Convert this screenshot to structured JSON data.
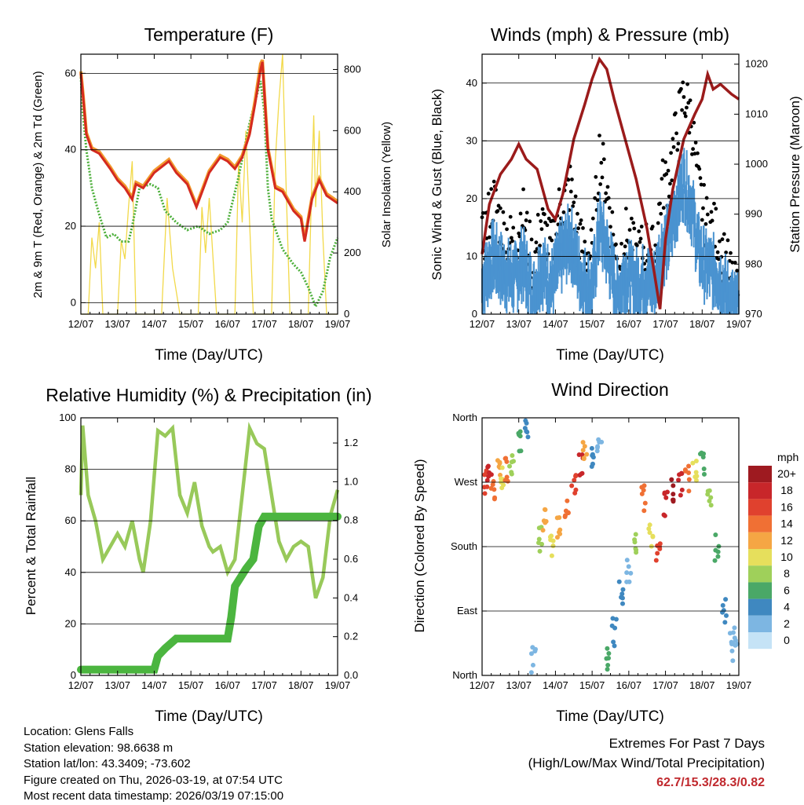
{
  "colors": {
    "t2m": "#d42a1f",
    "t9m": "#f29a2e",
    "td": "#4caf3a",
    "solar": "#f2d94a",
    "gust": "#000000",
    "wind": "#4a93d0",
    "pressure": "#9b1b1b",
    "rh": "#98c95a",
    "precip": "#4bb53f"
  },
  "chart_data": [
    {
      "id": "temperature",
      "type": "line",
      "title": "Temperature (F)",
      "xlabel": "Time (Day/UTC)",
      "ylabel": "2m & 9m T (Red, Orange) & 2m Td (Green)",
      "y2label": "Solar Insolation (Yellow)",
      "xticks": [
        "12/07",
        "13/07",
        "14/07",
        "15/07",
        "16/07",
        "17/07",
        "18/07",
        "19/07"
      ],
      "xlim": [
        0,
        7
      ],
      "ylim": [
        -3,
        65
      ],
      "yticks": [
        "0",
        "20",
        "40",
        "60"
      ],
      "y2lim": [
        0,
        850
      ],
      "y2ticks": [
        "0",
        "200",
        "400",
        "600",
        "800"
      ],
      "series": [
        {
          "name": "2m T",
          "x": [
            0,
            0.06,
            0.15,
            0.3,
            0.5,
            0.8,
            1.0,
            1.2,
            1.4,
            1.5,
            1.7,
            2.0,
            2.4,
            2.6,
            2.9,
            3.15,
            3.5,
            3.8,
            4.0,
            4.2,
            4.4,
            4.6,
            4.75,
            4.9,
            4.95,
            5.1,
            5.3,
            5.5,
            5.8,
            6.0,
            6.1,
            6.3,
            6.5,
            6.7,
            7.0
          ],
          "values": [
            60,
            54,
            44,
            40,
            39,
            35,
            32,
            30,
            27,
            31,
            30,
            34,
            37,
            34,
            31,
            25,
            34,
            38,
            37,
            35,
            38,
            44,
            52,
            61,
            63,
            40,
            30,
            29,
            24,
            22,
            16,
            27,
            32,
            28,
            26
          ]
        },
        {
          "name": "9m T",
          "x": [
            0,
            0.06,
            0.15,
            0.3,
            0.5,
            0.8,
            1.0,
            1.2,
            1.4,
            1.5,
            1.7,
            2.0,
            2.4,
            2.6,
            2.9,
            3.15,
            3.5,
            3.8,
            4.0,
            4.2,
            4.4,
            4.6,
            4.75,
            4.9,
            4.95,
            5.1,
            5.3,
            5.5,
            5.8,
            6.0,
            6.1,
            6.3,
            6.5,
            6.7,
            7.0
          ],
          "values": [
            60.5,
            54.5,
            44.5,
            40.5,
            39.5,
            35.5,
            32.5,
            30.5,
            27.5,
            31.5,
            30.5,
            34.5,
            37.5,
            34.5,
            31.5,
            25.5,
            34.5,
            38.5,
            37.5,
            35.5,
            38.5,
            44.5,
            53,
            62.5,
            63.5,
            40.5,
            30.5,
            29.5,
            24.5,
            22.5,
            16.5,
            27.5,
            32.5,
            28.5,
            26.5
          ]
        },
        {
          "name": "2m Td",
          "x": [
            0,
            0.05,
            0.15,
            0.3,
            0.5,
            0.7,
            0.9,
            1.1,
            1.3,
            1.4,
            1.6,
            1.9,
            2.1,
            2.3,
            2.6,
            2.9,
            3.2,
            3.5,
            3.8,
            4.0,
            4.3,
            4.6,
            4.9,
            5.0,
            5.1,
            5.2,
            5.5,
            5.8,
            6.0,
            6.2,
            6.4,
            6.6,
            6.8,
            7.0
          ],
          "values": [
            59,
            50,
            40,
            30,
            23,
            17,
            18,
            16,
            16,
            20,
            30,
            31,
            30,
            24,
            21,
            19,
            20,
            18,
            19,
            21,
            33,
            47,
            58,
            50,
            30,
            22,
            14,
            10,
            8,
            4,
            -1,
            3,
            12,
            17
          ]
        },
        {
          "name": "Solar Insolation",
          "axis": "y2",
          "x": [
            0,
            0.2,
            0.3,
            0.4,
            0.5,
            0.6,
            0.8,
            1.0,
            1.1,
            1.2,
            1.3,
            1.4,
            1.5,
            1.7,
            2.0,
            2.2,
            2.35,
            2.5,
            2.7,
            3.0,
            3.2,
            3.3,
            3.4,
            3.5,
            3.7,
            4.0,
            4.2,
            4.3,
            4.4,
            4.5,
            4.7,
            5.0,
            5.2,
            5.3,
            5.4,
            5.5,
            5.6,
            5.7,
            6.0,
            6.2,
            6.3,
            6.35,
            6.4,
            6.5,
            6.6,
            6.7,
            7.0
          ],
          "values": [
            0,
            0,
            250,
            150,
            300,
            0,
            0,
            0,
            240,
            180,
            350,
            500,
            0,
            0,
            0,
            0,
            380,
            150,
            0,
            0,
            0,
            350,
            200,
            380,
            0,
            0,
            0,
            500,
            300,
            600,
            0,
            0,
            0,
            500,
            700,
            850,
            400,
            0,
            0,
            0,
            450,
            650,
            350,
            600,
            250,
            0,
            0
          ]
        }
      ]
    },
    {
      "id": "winds",
      "type": "scatter",
      "title": "Winds (mph) & Pressure (mb)",
      "xlabel": "Time (Day/UTC)",
      "ylabel": "Sonic Wind & Gust (Blue, Black)",
      "y2label": "Station Pressure (Maroon)",
      "xticks": [
        "12/07",
        "13/07",
        "14/07",
        "15/07",
        "16/07",
        "17/07",
        "18/07",
        "19/07"
      ],
      "xlim": [
        0,
        7
      ],
      "ylim": [
        0,
        45
      ],
      "yticks": [
        "0",
        "10",
        "20",
        "30",
        "40"
      ],
      "y2lim": [
        970,
        1022
      ],
      "y2ticks": [
        "970",
        "980",
        "990",
        "1000",
        "1010",
        "1020"
      ],
      "series": [
        {
          "name": "Gust",
          "x": [
            0,
            0.3,
            0.6,
            0.9,
            1.1,
            1.4,
            1.6,
            1.9,
            2.1,
            2.4,
            2.7,
            3.0,
            3.2,
            3.4,
            3.7,
            3.9,
            4.2,
            4.5,
            4.7,
            4.9,
            5.1,
            5.3,
            5.5,
            5.7,
            5.9,
            6.1,
            6.4,
            6.7,
            7.0
          ],
          "values": [
            12,
            20,
            14,
            12,
            18,
            8,
            16,
            11,
            18,
            22,
            12,
            10,
            28,
            22,
            8,
            14,
            10,
            12,
            10,
            22,
            24,
            32,
            38,
            34,
            22,
            16,
            14,
            8,
            2
          ]
        },
        {
          "name": "Sonic Wind",
          "x": [
            0,
            0.3,
            0.6,
            0.9,
            1.1,
            1.4,
            1.6,
            1.9,
            2.1,
            2.4,
            2.7,
            3.0,
            3.2,
            3.4,
            3.7,
            3.9,
            4.2,
            4.5,
            4.7,
            4.9,
            5.1,
            5.3,
            5.5,
            5.7,
            5.9,
            6.1,
            6.4,
            6.7,
            7.0
          ],
          "values": [
            6,
            11,
            8,
            7,
            10,
            4,
            9,
            6,
            10,
            14,
            7,
            5,
            16,
            12,
            4,
            8,
            6,
            7,
            6,
            12,
            14,
            20,
            24,
            20,
            12,
            9,
            8,
            4,
            1
          ]
        },
        {
          "name": "Station Pressure",
          "axis": "y2",
          "x": [
            0,
            0.2,
            0.5,
            0.8,
            1.0,
            1.2,
            1.5,
            1.8,
            2.0,
            2.2,
            2.5,
            2.8,
            3.0,
            3.2,
            3.4,
            3.6,
            3.9,
            4.2,
            4.5,
            4.7,
            4.85,
            5.0,
            5.2,
            5.5,
            5.8,
            6.0,
            6.15,
            6.3,
            6.5,
            6.8,
            7.0
          ],
          "values": [
            982,
            992,
            998,
            1001,
            1004,
            1001,
            999,
            991,
            989,
            994,
            1005,
            1012,
            1017,
            1021,
            1019,
            1013,
            1005,
            997,
            987,
            978,
            971,
            985,
            995,
            1005,
            1010,
            1013,
            1018,
            1015,
            1016,
            1014,
            1013
          ]
        }
      ]
    },
    {
      "id": "humidity",
      "type": "line",
      "title": "Relative Humidity (%) & Precipitation (in)",
      "xlabel": "Time (Day/UTC)",
      "ylabel": "Percent & Total Rainfall",
      "xticks": [
        "12/07",
        "13/07",
        "14/07",
        "15/07",
        "16/07",
        "17/07",
        "18/07",
        "19/07"
      ],
      "xlim": [
        0,
        7
      ],
      "ylim": [
        0,
        100
      ],
      "yticks": [
        "0",
        "20",
        "40",
        "60",
        "80",
        "100"
      ],
      "y2lim": [
        0,
        1.33
      ],
      "y2ticks": [
        "0.0",
        "0.2",
        "0.4",
        "0.6",
        "0.8",
        "1.0",
        "1.2"
      ],
      "series": [
        {
          "name": "Relative Humidity",
          "x": [
            0,
            0.05,
            0.2,
            0.4,
            0.6,
            0.8,
            1.0,
            1.2,
            1.4,
            1.6,
            1.7,
            1.9,
            2.1,
            2.3,
            2.5,
            2.7,
            2.9,
            3.1,
            3.3,
            3.5,
            3.6,
            3.8,
            4.0,
            4.2,
            4.4,
            4.6,
            4.8,
            5.0,
            5.2,
            5.4,
            5.6,
            5.8,
            6.0,
            6.2,
            6.4,
            6.6,
            6.8,
            7.0
          ],
          "values": [
            70,
            97,
            70,
            60,
            45,
            50,
            55,
            50,
            60,
            45,
            40,
            60,
            95,
            93,
            96,
            70,
            63,
            75,
            58,
            50,
            48,
            50,
            40,
            45,
            70,
            96,
            90,
            88,
            70,
            52,
            45,
            50,
            52,
            50,
            30,
            38,
            62,
            72
          ]
        },
        {
          "name": "Total Rainfall",
          "axis": "y2",
          "x": [
            0,
            1.0,
            2.0,
            2.1,
            2.3,
            2.6,
            3.0,
            3.5,
            4.0,
            4.1,
            4.2,
            4.5,
            4.7,
            4.85,
            5.0,
            5.2,
            6.0,
            7.0
          ],
          "values": [
            0.03,
            0.03,
            0.03,
            0.1,
            0.14,
            0.19,
            0.19,
            0.19,
            0.19,
            0.3,
            0.46,
            0.55,
            0.6,
            0.77,
            0.82,
            0.82,
            0.82,
            0.82
          ]
        }
      ]
    },
    {
      "id": "direction",
      "type": "scatter",
      "title": "Wind Direction",
      "xlabel": "Time (Day/UTC)",
      "ylabel": "Direction (Colored By Speed)",
      "xticks": [
        "12/07",
        "13/07",
        "14/07",
        "15/07",
        "16/07",
        "17/07",
        "18/07",
        "19/07"
      ],
      "xlim": [
        0,
        7
      ],
      "ylim": [
        0,
        360
      ],
      "yticks": [
        "North",
        "East",
        "South",
        "West",
        "North"
      ],
      "legend_title": "mph",
      "legend_labels": [
        "20+",
        "18",
        "16",
        "14",
        "12",
        "10",
        "8",
        "6",
        "4",
        "2",
        "0"
      ],
      "legend_colors": [
        "#9e1a20",
        "#c8262a",
        "#e0412e",
        "#f07034",
        "#f5a644",
        "#e6df5c",
        "#9fd05a",
        "#4aa867",
        "#3f88c0",
        "#7db6e2",
        "#c5e3f6"
      ],
      "x": [
        0.1,
        0.2,
        0.3,
        0.45,
        0.55,
        0.65,
        0.8,
        1.0,
        1.2,
        1.4,
        1.6,
        1.7,
        1.9,
        2.1,
        2.3,
        2.5,
        2.7,
        2.8,
        3.0,
        3.2,
        3.4,
        3.6,
        3.8,
        4.0,
        4.2,
        4.4,
        4.6,
        4.8,
        5.0,
        5.2,
        5.4,
        5.6,
        5.8,
        6.0,
        6.2,
        6.4,
        6.6,
        6.8,
        6.9
      ],
      "y": [
        270,
        280,
        265,
        285,
        275,
        290,
        300,
        330,
        350,
        20,
        190,
        220,
        180,
        210,
        240,
        270,
        290,
        320,
        300,
        330,
        20,
        60,
        120,
        150,
        180,
        250,
        200,
        180,
        240,
        260,
        270,
        275,
        280,
        300,
        250,
        180,
        90,
        40,
        60
      ],
      "speed": [
        16,
        18,
        14,
        12,
        10,
        14,
        8,
        6,
        4,
        2,
        8,
        12,
        10,
        12,
        14,
        16,
        18,
        12,
        4,
        2,
        6,
        4,
        4,
        2,
        8,
        14,
        10,
        16,
        18,
        20,
        18,
        14,
        10,
        6,
        8,
        6,
        4,
        2,
        2
      ]
    }
  ],
  "meta": {
    "location": "Location: Glens Falls",
    "elevation": "Station elevation: 98.6638 m",
    "latlon": "Station lat/lon: 43.3409; -73.602",
    "created": "Figure created on Thu, 2026-03-19, at 07:54 UTC",
    "latest": "Most recent data timestamp: 2026/03/19 07:15:00"
  },
  "extremes": {
    "title": "Extremes For Past 7 Days",
    "subtitle": "(High/Low/Max Wind/Total Precipitation)",
    "values": "62.7/15.3/28.3/0.82"
  }
}
